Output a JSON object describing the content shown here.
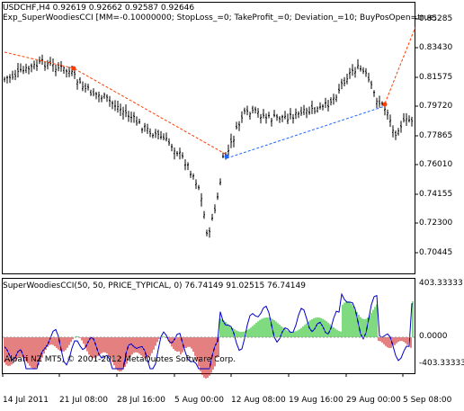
{
  "main_chart": {
    "symbol_line": "USDCHF,H4  0.92619 0.92662 0.92587 0.92646",
    "expert_line": "Exp_SuperWoodiesCCI [MM=-0.10000000; StopLoss_=0; TakeProfit_=0; Deviation_=10; BuyPosOpen=true;",
    "price_labels": [
      "0.85285",
      "0.83430",
      "0.81575",
      "0.79720",
      "0.77865",
      "0.76010",
      "0.74155",
      "0.72300",
      "0.70445"
    ],
    "candle_color": "#000000",
    "sell_trade_color": "#ff3c00",
    "buy_trade_color": "#1e64ff"
  },
  "indicator": {
    "title": "SuperWoodiesCCI(50, 50, PRICE_TYPICAL, 0) 76.74149 91.02515 76.74149",
    "levels": [
      "403.33333",
      "0.0000",
      "-403.33333"
    ],
    "positive_color": "#00b400",
    "negative_color": "#c80000",
    "line_color": "#0000c8"
  },
  "footer": {
    "text": "Alpari NZ MT5, © 2001-2012 MetaQuotes Software Corp."
  },
  "time_axis": {
    "labels": [
      "14 Jul 2011",
      "21 Jul 08:00",
      "28 Jul 16:00",
      "5 Aug 00:00",
      "12 Aug 08:00",
      "19 Aug 16:00",
      "29 Aug 00:00",
      "5 Sep 08:00"
    ]
  }
}
